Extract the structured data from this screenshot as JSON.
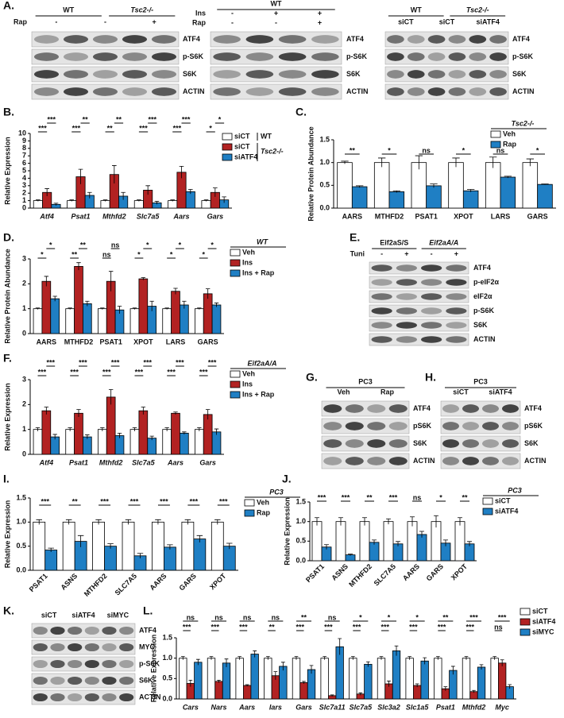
{
  "chart_data": [
    {
      "type": "bar",
      "panel": "B.",
      "ylabel": "Relative Expression",
      "categories": [
        "Atf4",
        "Psat1",
        "Mthfd2",
        "Slc7a5",
        "Aars",
        "Gars"
      ],
      "series": [
        {
          "name": "siCT",
          "color": "#ffffff",
          "values": [
            1,
            1,
            1,
            1,
            1,
            1
          ],
          "errors": [
            0.1,
            0.1,
            0.1,
            0.1,
            0.1,
            0.1
          ]
        },
        {
          "name": "siCT",
          "color": "#b22222",
          "values": [
            2.1,
            4.2,
            4.5,
            2.4,
            4.8,
            2.1
          ],
          "errors": [
            0.5,
            1.0,
            1.2,
            0.6,
            0.8,
            0.6
          ]
        },
        {
          "name": "siATF4",
          "color": "#1f7fc4",
          "values": [
            0.5,
            1.7,
            1.6,
            0.7,
            2.2,
            1.1
          ],
          "errors": [
            0.15,
            0.4,
            0.5,
            0.2,
            0.3,
            0.4
          ]
        }
      ],
      "legend_groups": [
        "WT",
        "Tsc2-/-"
      ],
      "significance": [
        [
          "***",
          "**",
          "**",
          "***",
          "***",
          "*"
        ],
        [
          "***",
          "***",
          "**",
          "***",
          "***",
          "*"
        ]
      ],
      "ylim": [
        0,
        10
      ],
      "yticks": [
        0,
        1,
        2,
        3,
        4,
        5,
        6,
        7,
        8,
        9,
        10
      ]
    },
    {
      "type": "bar",
      "panel": "C.",
      "ylabel": "Relative Protein Abundance",
      "categories": [
        "AARS",
        "MTHFD2",
        "PSAT1",
        "XPOT",
        "LARS",
        "GARS"
      ],
      "series": [
        {
          "name": "Veh",
          "color": "#ffffff",
          "values": [
            1,
            1,
            1,
            1,
            1,
            1
          ],
          "errors": [
            0.03,
            0.1,
            0.15,
            0.1,
            0.12,
            0.08
          ]
        },
        {
          "name": "Rap",
          "color": "#1f7fc4",
          "values": [
            0.47,
            0.36,
            0.49,
            0.38,
            0.68,
            0.52
          ],
          "errors": [
            0.02,
            0.02,
            0.04,
            0.03,
            0.02,
            0.01
          ]
        }
      ],
      "legend_title": "Tsc2-/-",
      "significance": [
        [
          "**",
          "*",
          "ns",
          "*",
          "ns",
          "*"
        ]
      ],
      "ylim": [
        0,
        1.5
      ],
      "yticks": [
        {
          "value": 0,
          "label": "0.0"
        },
        0.5,
        {
          "value": 1,
          "label": "1.0"
        },
        1.5
      ]
    },
    {
      "type": "bar",
      "panel": "D.",
      "ylabel": "Relative Protein Abundance",
      "categories": [
        "AARS",
        "MTHFD2",
        "PSAT1",
        "XPOT",
        "LARS",
        "GARS"
      ],
      "series": [
        {
          "name": "Veh",
          "color": "#ffffff",
          "values": [
            1,
            1,
            1,
            1,
            1,
            1
          ],
          "errors": [
            0.03,
            0.03,
            0.03,
            0.03,
            0.03,
            0.03
          ]
        },
        {
          "name": "Ins",
          "color": "#b22222",
          "values": [
            2.1,
            2.7,
            2.1,
            2.2,
            1.7,
            1.6
          ],
          "errors": [
            0.2,
            0.15,
            0.4,
            0.05,
            0.12,
            0.2
          ]
        },
        {
          "name": "Ins + Rap",
          "color": "#1f7fc4",
          "values": [
            1.4,
            1.2,
            0.95,
            1.1,
            1.15,
            1.15
          ],
          "errors": [
            0.1,
            0.1,
            0.15,
            0.2,
            0.15,
            0.08
          ]
        }
      ],
      "legend_title": "WT",
      "significance": [
        [
          "*",
          "**",
          "ns",
          "*",
          "*",
          "*"
        ],
        [
          "*",
          "**",
          "ns",
          "*",
          "*",
          "*"
        ]
      ],
      "ylim": [
        0,
        3
      ],
      "yticks": [
        0,
        1,
        2,
        3
      ]
    },
    {
      "type": "bar",
      "panel": "F.",
      "ylabel": "Relative Expression",
      "categories": [
        "Atf4",
        "Psat1",
        "Mthfd2",
        "Slc7a5",
        "Aars",
        "Gars"
      ],
      "series": [
        {
          "name": "Veh",
          "color": "#ffffff",
          "values": [
            1,
            1,
            1,
            1,
            1,
            1
          ],
          "errors": [
            0.07,
            0.07,
            0.07,
            0.07,
            0.07,
            0.07
          ]
        },
        {
          "name": "Ins",
          "color": "#b22222",
          "values": [
            1.75,
            1.65,
            2.3,
            1.75,
            1.65,
            1.6
          ],
          "errors": [
            0.15,
            0.15,
            0.3,
            0.15,
            0.05,
            0.2
          ]
        },
        {
          "name": "Ins + Rap",
          "color": "#1f7fc4",
          "values": [
            0.7,
            0.7,
            0.75,
            0.65,
            0.85,
            0.9
          ],
          "errors": [
            0.1,
            0.08,
            0.1,
            0.08,
            0.05,
            0.12
          ]
        }
      ],
      "legend_title": "Eif2aA/A",
      "significance": [
        [
          "***",
          "***",
          "***",
          "***",
          "***",
          "***"
        ],
        [
          "***",
          "***",
          "***",
          "***",
          "***",
          "***"
        ]
      ],
      "ylim": [
        0,
        3
      ],
      "yticks": [
        0,
        1,
        2,
        3
      ]
    },
    {
      "type": "bar",
      "panel": "I.",
      "ylabel": "Relative Expression",
      "categories": [
        "PSAT1",
        "ASNS",
        "MTHFD2",
        "SLC7A5",
        "AARS",
        "GARS",
        "XPOT"
      ],
      "series": [
        {
          "name": "Veh",
          "color": "#ffffff",
          "values": [
            1,
            1,
            1,
            1,
            1,
            1,
            1
          ],
          "errors": [
            0.05,
            0.05,
            0.05,
            0.05,
            0.05,
            0.05,
            0.05
          ]
        },
        {
          "name": "Rap",
          "color": "#1f7fc4",
          "values": [
            0.42,
            0.6,
            0.5,
            0.3,
            0.48,
            0.65,
            0.5
          ],
          "errors": [
            0.04,
            0.12,
            0.05,
            0.05,
            0.05,
            0.07,
            0.06
          ]
        }
      ],
      "legend_title": "PC3",
      "significance": [
        [
          "***",
          "**",
          "***",
          "***",
          "***",
          "***",
          "***"
        ]
      ],
      "ylim": [
        0,
        1.5
      ],
      "yticks": [
        {
          "value": 0,
          "label": "0.0"
        },
        0.5,
        {
          "value": 1,
          "label": "1.0"
        },
        1.5
      ]
    },
    {
      "type": "bar",
      "panel": "J.",
      "ylabel": "Relative Expression",
      "categories": [
        "PSAT1",
        "ASNS",
        "MTHFD2",
        "SLC7A5",
        "AARS",
        "GARS",
        "XPOT"
      ],
      "series": [
        {
          "name": "siCT",
          "color": "#ffffff",
          "values": [
            1,
            1,
            1,
            1,
            1,
            1,
            1
          ],
          "errors": [
            0.1,
            0.1,
            0.1,
            0.07,
            0.12,
            0.15,
            0.1
          ]
        },
        {
          "name": "siATF4",
          "color": "#1f7fc4",
          "values": [
            0.35,
            0.15,
            0.47,
            0.43,
            0.67,
            0.45,
            0.43
          ],
          "errors": [
            0.06,
            0.02,
            0.06,
            0.06,
            0.08,
            0.08,
            0.06
          ]
        }
      ],
      "legend_title": "PC3",
      "significance": [
        [
          "***",
          "***",
          "**",
          "***",
          "ns",
          "*",
          "**"
        ]
      ],
      "ylim": [
        0,
        1.5
      ],
      "yticks": [
        {
          "value": 0,
          "label": "0.0"
        },
        0.5,
        {
          "value": 1,
          "label": "1.0"
        },
        1.5
      ]
    },
    {
      "type": "bar",
      "panel": "L.",
      "ylabel": "Relative Expression",
      "categories": [
        "Cars",
        "Nars",
        "Aars",
        "Iars",
        "Gars",
        "Slc7a11",
        "Slc7a5",
        "Slc3a2",
        "Slc1a5",
        "Psat1",
        "Mthfd2",
        "Myc"
      ],
      "series": [
        {
          "name": "siCT",
          "color": "#ffffff",
          "values": [
            1,
            1,
            1,
            1,
            1,
            1,
            1,
            1,
            1,
            1,
            1,
            1
          ],
          "errors": [
            0.04,
            0.04,
            0.04,
            0.04,
            0.04,
            0.04,
            0.04,
            0.04,
            0.04,
            0.04,
            0.04,
            0.04
          ]
        },
        {
          "name": "siATF4",
          "color": "#b22222",
          "values": [
            0.38,
            0.43,
            0.33,
            0.57,
            0.4,
            0.08,
            0.12,
            0.37,
            0.33,
            0.25,
            0.18,
            0.88
          ],
          "errors": [
            0.08,
            0.03,
            0.02,
            0.1,
            0.03,
            0.02,
            0.03,
            0.07,
            0.04,
            0.05,
            0.03,
            0.08
          ]
        },
        {
          "name": "siMYC",
          "color": "#1f7fc4",
          "values": [
            0.9,
            0.88,
            1.1,
            0.8,
            0.72,
            1.28,
            0.85,
            1.18,
            0.93,
            0.7,
            0.78,
            0.3
          ],
          "errors": [
            0.07,
            0.1,
            0.08,
            0.1,
            0.1,
            0.2,
            0.06,
            0.12,
            0.08,
            0.1,
            0.06,
            0.05
          ]
        }
      ],
      "significance": [
        [
          "ns",
          "ns",
          "ns",
          "ns",
          "**",
          "ns",
          "*",
          "*",
          "*",
          "**",
          "***",
          "***"
        ],
        [
          "***",
          "***",
          "***",
          "**",
          "***",
          "***",
          "***",
          "***",
          "***",
          "***",
          "***",
          "ns"
        ]
      ],
      "ylim": [
        0,
        1.5
      ],
      "yticks": [
        {
          "value": 0,
          "label": "0.0"
        },
        0.5,
        {
          "value": 1,
          "label": "1.0"
        },
        1.5
      ]
    }
  ],
  "blots": [
    {
      "panel": "A.",
      "headers": [
        {
          "items": [
            "WT",
            "Tsc2-/-"
          ]
        },
        {
          "name": "Rap",
          "items": [
            "-",
            "-",
            "+"
          ]
        }
      ],
      "proteins": [
        "ATF4",
        "p-S6K",
        "S6K",
        "ACTIN"
      ]
    },
    {
      "headers": [
        {
          "items": [
            "WT"
          ]
        },
        {
          "name": "Ins",
          "items": [
            "-",
            "+",
            "+"
          ]
        },
        {
          "name": "Rap",
          "items": [
            "-",
            "-",
            "+"
          ]
        }
      ],
      "proteins": [
        "ATF4",
        "p-S6K",
        "S6K",
        "ACTIN"
      ]
    },
    {
      "headers": [
        {
          "items": [
            "WT",
            "Tsc2-/-"
          ]
        },
        {
          "items": [
            "siCT",
            "siCT",
            "siATF4"
          ]
        }
      ],
      "proteins": [
        "ATF4",
        "p-S6K",
        "S6K",
        "ACTIN"
      ]
    },
    {
      "panel": "E.",
      "headers": [
        {
          "items": [
            "Eif2aS/S",
            "Eif2aA/A"
          ]
        },
        {
          "name": "Tuni",
          "items": [
            "-",
            "+",
            "-",
            "+"
          ]
        }
      ],
      "proteins": [
        "ATF4",
        "p-eIF2α",
        "eIF2α",
        "p-S6K",
        "S6K",
        "ACTIN"
      ]
    },
    {
      "panel": "G.",
      "headers": [
        {
          "items": [
            "PC3"
          ]
        },
        {
          "items": [
            "Veh",
            "Rap"
          ]
        }
      ],
      "proteins": [
        "ATF4",
        "pS6K",
        "S6K",
        "ACTIN"
      ]
    },
    {
      "panel": "H.",
      "headers": [
        {
          "items": [
            "PC3"
          ]
        },
        {
          "items": [
            "siCT",
            "siATF4"
          ]
        }
      ],
      "proteins": [
        "ATF4",
        "pS6K",
        "S6K",
        "ACTIN"
      ]
    },
    {
      "panel": "K.",
      "headers": [
        {
          "items": [
            "siCT",
            "siATF4",
            "siMYC"
          ]
        }
      ],
      "proteins": [
        "ATF4",
        "MYC",
        "p-S6K",
        "S6K",
        "ACTIN"
      ]
    }
  ]
}
